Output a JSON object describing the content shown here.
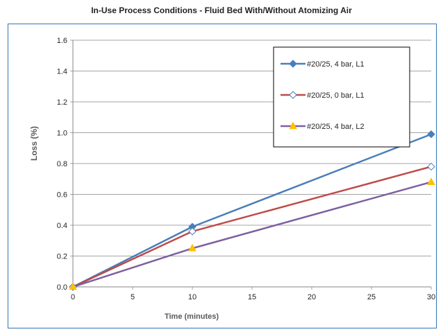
{
  "chart_data": {
    "type": "line",
    "title": "In-Use Process Conditions - Fluid Bed With/Without Atomizing Air",
    "xlabel": "Time (minutes)",
    "ylabel": "Loss (%)",
    "xlim": [
      0,
      30
    ],
    "ylim": [
      0,
      1.6
    ],
    "x_ticks": [
      "0",
      "5",
      "10",
      "15",
      "20",
      "25",
      "30"
    ],
    "y_ticks": [
      "0.0",
      "0.2",
      "0.4",
      "0.6",
      "0.8",
      "1.0",
      "1.2",
      "1.4",
      "1.6"
    ],
    "grid": "horizontal",
    "legend_position": "top-right",
    "series": [
      {
        "name": "#20/25, 4 bar, L1",
        "color": "#4a7ebb",
        "marker": "filled-diamond",
        "marker_color": "#4a7ebb",
        "x": [
          0,
          10,
          30
        ],
        "y": [
          0.0,
          0.39,
          0.99
        ]
      },
      {
        "name": "#20/25, 0 bar, L1",
        "color": "#be4b48",
        "marker": "open-diamond",
        "marker_color": "#4a7ebb",
        "x": [
          0,
          10,
          30
        ],
        "y": [
          0.0,
          0.36,
          0.78
        ]
      },
      {
        "name": "#20/25, 4 bar, L2",
        "color": "#7d60a0",
        "marker": "triangle",
        "marker_color": "#ffc000",
        "x": [
          0,
          10,
          30
        ],
        "y": [
          0.0,
          0.25,
          0.68
        ]
      }
    ]
  }
}
